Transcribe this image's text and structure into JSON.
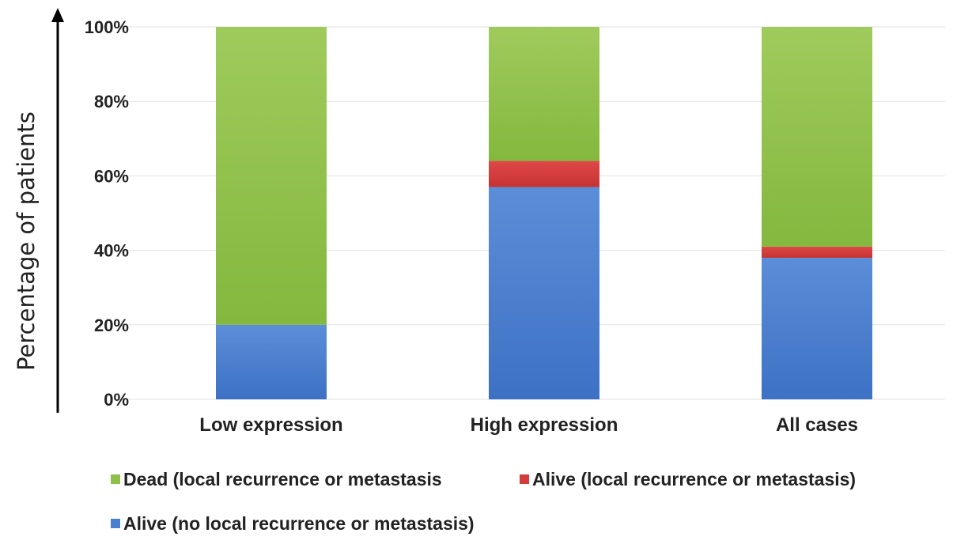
{
  "chart_data": {
    "type": "bar",
    "stacked": true,
    "title": "",
    "xlabel": "",
    "ylabel": "Percentage of patients",
    "ylim": [
      0,
      100
    ],
    "yticks": [
      "0%",
      "20%",
      "40%",
      "60%",
      "80%",
      "100%"
    ],
    "grid": true,
    "legend_position": "bottom",
    "categories": [
      "Low expression",
      "High expression",
      "All cases"
    ],
    "series": [
      {
        "name": "Alive (no local recurrence or metastasis)",
        "values": [
          20,
          57,
          38
        ],
        "color": "#4a7fd0"
      },
      {
        "name": "Alive (local recurrence or metastasis)",
        "values": [
          0,
          7,
          3
        ],
        "color": "#d43c3c"
      },
      {
        "name": "Dead (local recurrence or metastasis",
        "values": [
          80,
          36,
          59
        ],
        "color": "#8fc04a"
      }
    ],
    "legend_order": [
      2,
      1,
      0
    ]
  }
}
